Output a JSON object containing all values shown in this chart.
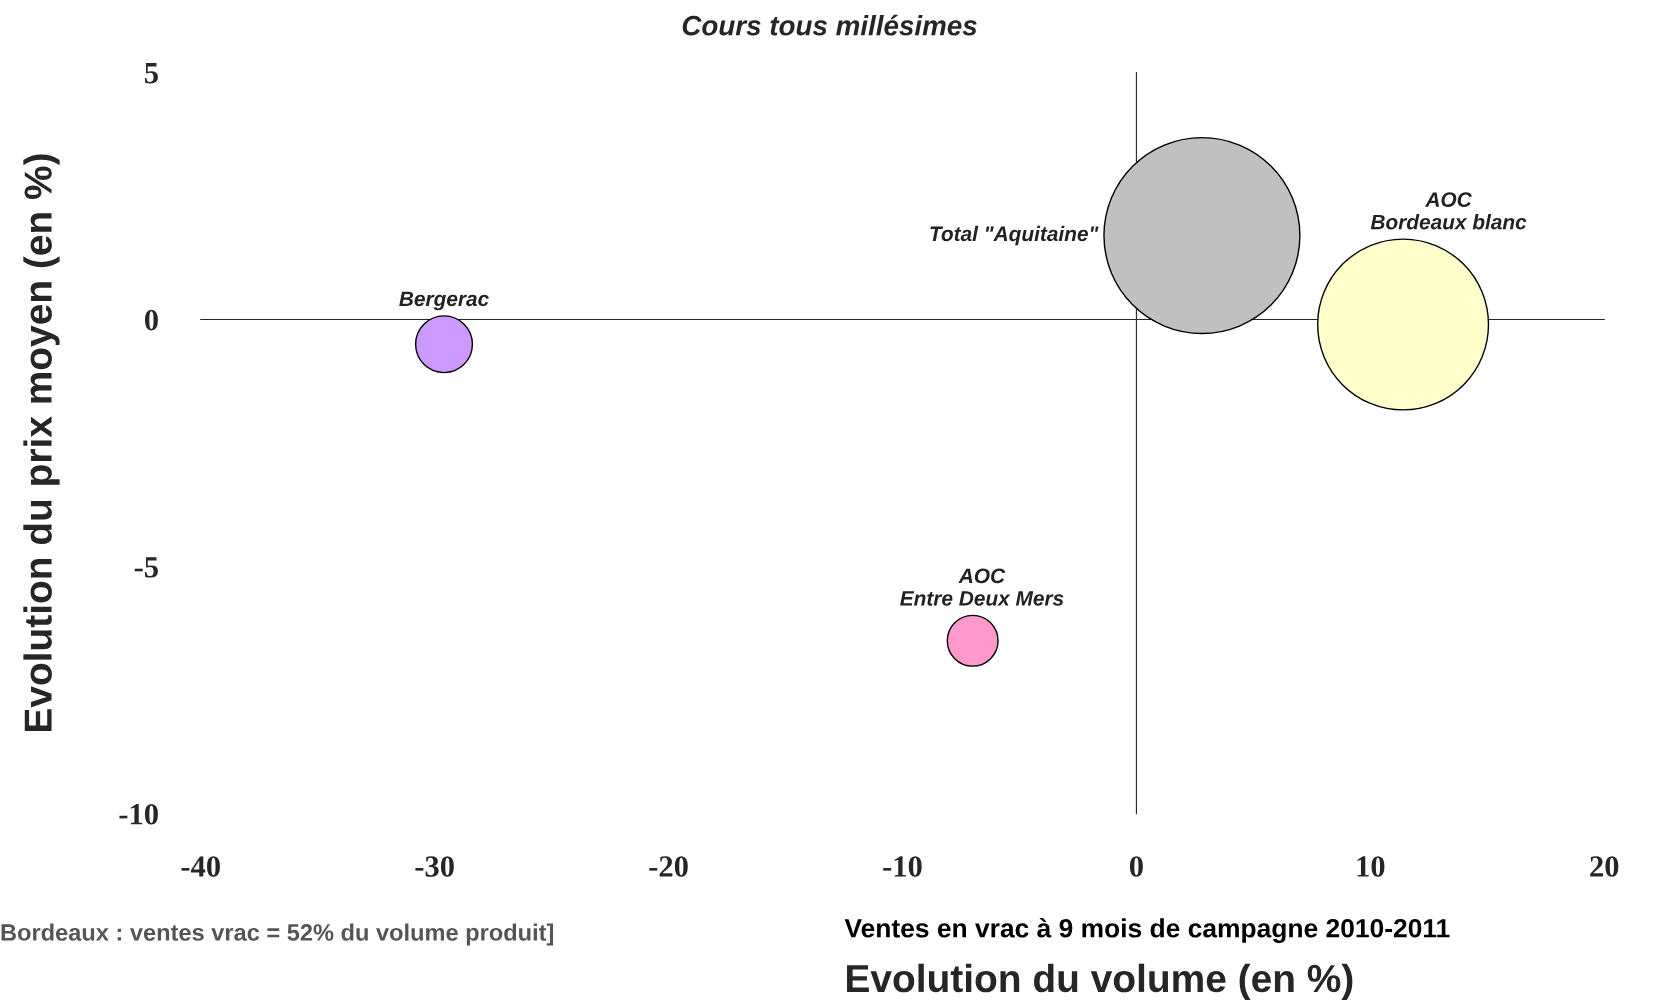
{
  "chart_data": {
    "type": "bubble",
    "title": "Cours tous millésimes",
    "xlabel": "Evolution du volume (en %)",
    "ylabel": "Evolution du prix moyen (en %)",
    "annotations": [
      "Bordeaux : ventes vrac = 52% du volume produit]",
      "Ventes en vrac à 9 mois de campagne 2010-2011"
    ],
    "series": [
      {
        "name": "Bergerac",
        "color": "#cc99ff",
        "x": [
          -29.6
        ],
        "values": [
          -0.5
        ],
        "sizes": [
          0.084
        ]
      },
      {
        "name": "Total \"Aquitaine\"",
        "color": "#c0c0c0",
        "x": [
          2.8
        ],
        "values": [
          1.7
        ],
        "sizes": [
          1
        ]
      },
      {
        "name": "AOC\nBordeaux blanc",
        "color": "#ffffcc",
        "x": [
          11.4
        ],
        "values": [
          -0.1
        ],
        "sizes": [
          0.76
        ]
      },
      {
        "name": "AOC\nEntre Deux Mers",
        "color": "#ff99cc",
        "x": [
          -7.0
        ],
        "values": [
          -6.5
        ],
        "sizes": [
          0.067
        ]
      }
    ],
    "xlim": [
      -40,
      20
    ],
    "xticks": [
      -40,
      -30,
      -20,
      -10,
      0,
      10,
      20
    ],
    "ylim": [
      -10,
      5
    ],
    "yticks": [
      -10,
      -5,
      0,
      5
    ],
    "marker": "circle"
  }
}
